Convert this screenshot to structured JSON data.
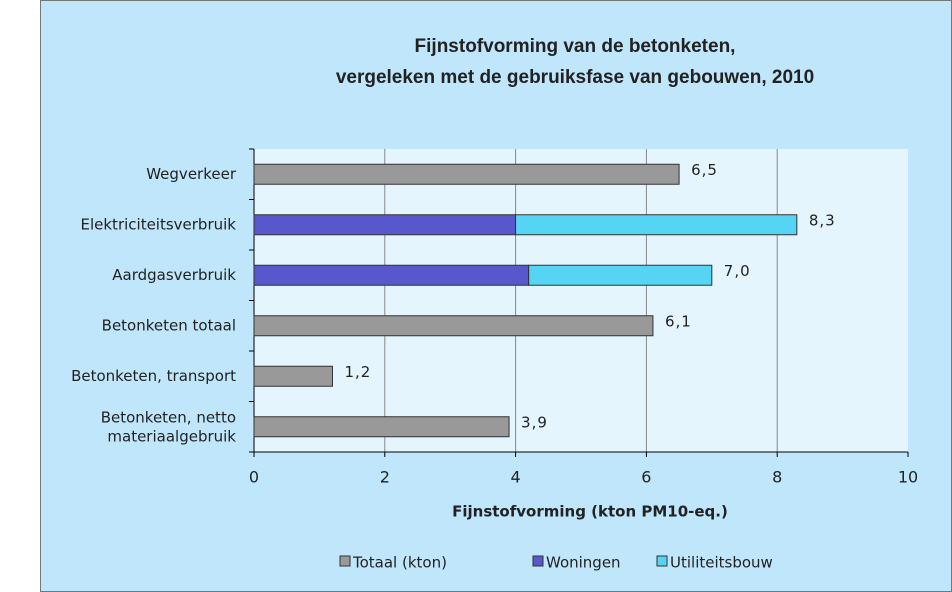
{
  "chart_data": {
    "type": "stacked_barh",
    "title": [
      "Fijnstofvorming  van de betonketen,",
      "vergeleken met de gebruiksfase  van gebouwen, 2010"
    ],
    "xlabel": "Fijnstofvorming (kton PM10-eq.)",
    "categories": [
      "Wegverkeer",
      "Elektriciteitsverbruik",
      "Aardgasverbruik",
      "Betonketen totaal",
      "Betonketen, transport",
      "Betonketen, netto\nmateriaalgebruik"
    ],
    "series": [
      {
        "name": "Totaal (kton)",
        "color": "#999999",
        "values": [
          6.5,
          null,
          null,
          6.1,
          1.2,
          3.9
        ]
      },
      {
        "name": "Woningen",
        "color": "#5858cc",
        "values": [
          null,
          4.0,
          4.2,
          null,
          null,
          null
        ]
      },
      {
        "name": "Utiliteitsbouw",
        "color": "#55d4f4",
        "values": [
          null,
          4.3,
          2.8,
          null,
          null,
          null
        ]
      }
    ],
    "totals": {
      "values": [
        6.5,
        8.3,
        7.0,
        6.1,
        1.2,
        3.9
      ],
      "value_labels": [
        "6,5",
        "8,3",
        "7,0",
        "6,1",
        "1,2",
        "3,9"
      ]
    },
    "xlim": [
      0,
      10
    ],
    "xticks": [
      0,
      2,
      4,
      6,
      8,
      10
    ],
    "grid": true,
    "legend": "bottom"
  }
}
